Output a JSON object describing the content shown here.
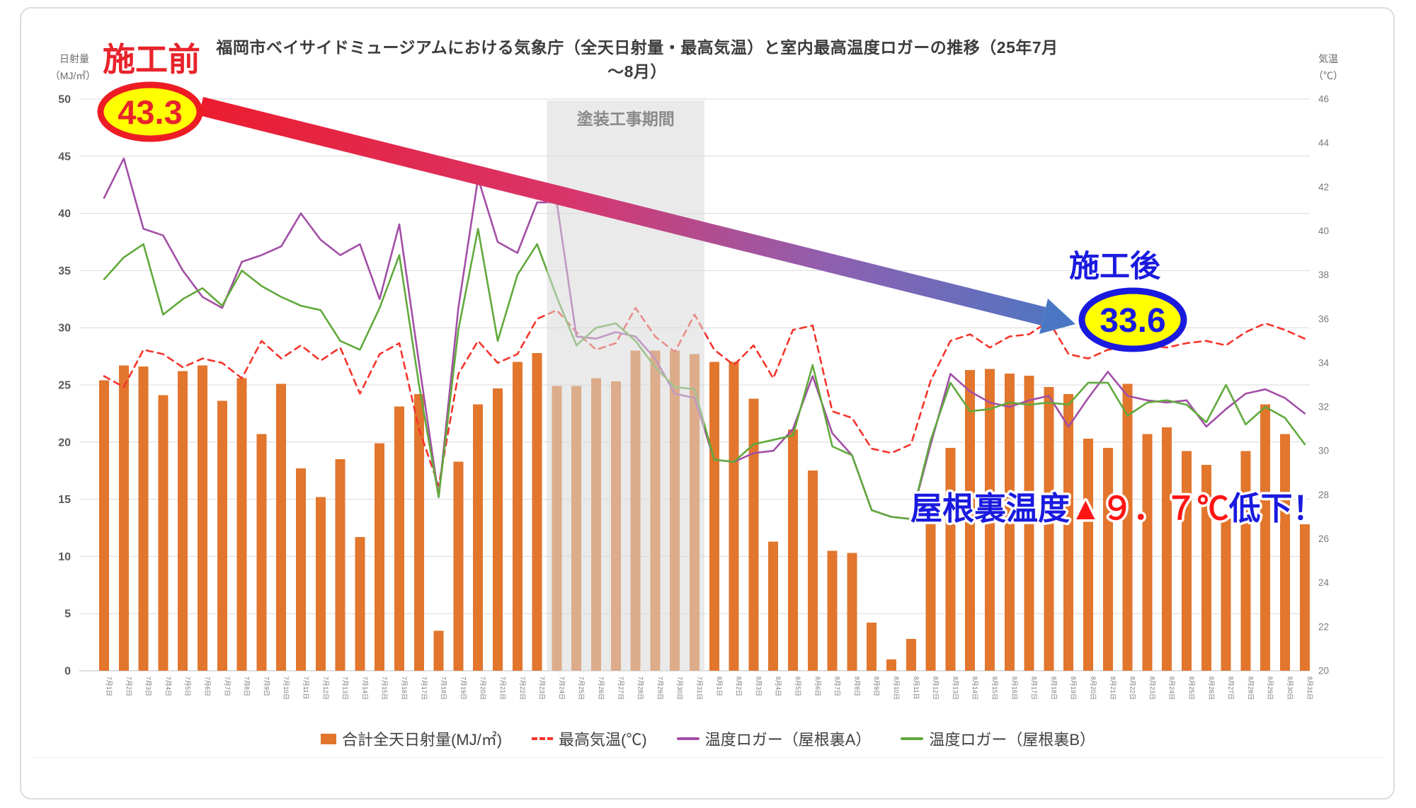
{
  "chart_data": {
    "type": "bar+line combo",
    "title": "福岡市ベイサイドミュージアムにおける気象庁（全天日射量・最高気温）と室内最高温度ロガーの推移（25年7月～8月）",
    "categories": [
      "7月1日",
      "7月2日",
      "7月3日",
      "7月4日",
      "7月5日",
      "7月6日",
      "7月7日",
      "7月8日",
      "7月9日",
      "7月10日",
      "7月11日",
      "7月12日",
      "7月13日",
      "7月14日",
      "7月15日",
      "7月16日",
      "7月17日",
      "7月18日",
      "7月19日",
      "7月20日",
      "7月21日",
      "7月22日",
      "7月23日",
      "7月24日",
      "7月25日",
      "7月26日",
      "7月27日",
      "7月28日",
      "7月29日",
      "7月30日",
      "7月31日",
      "8月1日",
      "8月2日",
      "8月3日",
      "8月4日",
      "8月5日",
      "8月6日",
      "8月7日",
      "8月8日",
      "8月9日",
      "8月10日",
      "8月11日",
      "8月12日",
      "8月13日",
      "8月14日",
      "8月15日",
      "8月16日",
      "8月17日",
      "8月18日",
      "8月19日",
      "8月20日",
      "8月21日",
      "8月22日",
      "8月23日",
      "8月24日",
      "8月25日",
      "8月26日",
      "8月27日",
      "8月28日",
      "8月29日",
      "8月30日",
      "8月31日"
    ],
    "series": [
      {
        "name": "合計全天日射量(MJ/㎡)",
        "type": "bar",
        "axis": "left",
        "color": "#e2762d",
        "values": [
          25.4,
          26.7,
          26.6,
          24.1,
          26.2,
          26.7,
          23.6,
          25.6,
          20.7,
          25.1,
          17.7,
          15.2,
          18.5,
          11.7,
          19.9,
          23.1,
          24.2,
          3.5,
          18.3,
          23.3,
          24.7,
          27.0,
          27.8,
          24.9,
          24.9,
          25.6,
          25.3,
          28.0,
          28.0,
          28.0,
          27.7,
          27.0,
          27.0,
          23.8,
          11.3,
          21.1,
          17.5,
          10.5,
          10.3,
          4.2,
          1.0,
          2.8,
          13.6,
          19.5,
          26.3,
          26.4,
          26.0,
          25.8,
          24.8,
          24.2,
          20.3,
          19.5,
          25.1,
          20.7,
          21.3,
          19.2,
          18.0,
          13.3,
          19.2,
          23.3,
          20.7,
          12.8
        ]
      },
      {
        "name": "最高気温(℃)",
        "type": "line",
        "style": "dashed",
        "axis": "right",
        "color": "#f5342b",
        "values": [
          33.4,
          32.9,
          34.6,
          34.4,
          33.8,
          34.2,
          34.0,
          33.3,
          35.0,
          34.2,
          34.8,
          34.1,
          34.7,
          32.6,
          34.4,
          34.9,
          31.0,
          28.4,
          33.5,
          35.0,
          34.0,
          34.4,
          36.0,
          36.4,
          35.4,
          34.6,
          34.9,
          36.5,
          35.2,
          34.5,
          36.2,
          34.6,
          33.9,
          34.8,
          33.3,
          35.5,
          35.7,
          31.8,
          31.5,
          30.1,
          29.9,
          30.3,
          33.2,
          35.0,
          35.3,
          34.7,
          35.2,
          35.3,
          35.9,
          34.4,
          34.2,
          34.6,
          34.7,
          34.8,
          34.7,
          34.9,
          35.0,
          34.8,
          35.4,
          35.8,
          35.5,
          35.1
        ]
      },
      {
        "name": "温度ロガー（屋根裏A）",
        "type": "line",
        "style": "solid",
        "axis": "right",
        "color": "#a24fa6",
        "values": [
          41.5,
          43.3,
          40.1,
          39.8,
          38.2,
          37.0,
          36.5,
          38.6,
          38.9,
          39.3,
          40.8,
          39.6,
          38.9,
          39.4,
          36.9,
          40.3,
          34.0,
          27.9,
          36.5,
          42.4,
          39.5,
          39.0,
          41.3,
          41.3,
          35.2,
          35.1,
          35.4,
          35.2,
          34.2,
          32.6,
          32.4,
          29.6,
          29.5,
          29.9,
          30.0,
          31.0,
          33.4,
          30.8,
          29.8,
          27.3,
          27.0,
          26.9,
          30.3,
          33.5,
          32.7,
          32.2,
          32.0,
          32.3,
          32.5,
          31.1,
          32.4,
          33.6,
          32.5,
          32.3,
          32.2,
          32.3,
          31.1,
          31.9,
          32.6,
          32.8,
          32.4,
          31.7
        ]
      },
      {
        "name": "温度ロガー（屋根裏B）",
        "type": "line",
        "style": "solid",
        "axis": "right",
        "color": "#61a93c",
        "values": [
          37.8,
          38.8,
          39.4,
          36.2,
          36.9,
          37.4,
          36.6,
          38.2,
          37.5,
          37.0,
          36.6,
          36.4,
          35.0,
          34.6,
          36.5,
          38.9,
          33.0,
          27.9,
          35.5,
          40.1,
          35.0,
          38.0,
          39.4,
          37.0,
          34.8,
          35.6,
          35.8,
          35.0,
          33.8,
          32.9,
          32.8,
          29.6,
          29.5,
          30.3,
          30.5,
          30.7,
          33.9,
          30.2,
          29.8,
          27.3,
          27.0,
          26.9,
          30.5,
          33.1,
          31.8,
          31.9,
          32.2,
          32.1,
          32.2,
          32.1,
          33.1,
          33.1,
          31.6,
          32.2,
          32.3,
          32.1,
          31.3,
          33.0,
          31.2,
          32.0,
          31.5,
          30.3
        ]
      }
    ],
    "left_axis": {
      "label_line1": "日射量",
      "label_line2": "（MJ/㎡）",
      "min": 0,
      "max": 50,
      "step": 5
    },
    "right_axis": {
      "label_line1": "気温",
      "label_line2": "（℃）",
      "min": 20,
      "max": 46,
      "step": 2
    },
    "band": {
      "label": "塗装工事期間",
      "start_index": 23,
      "end_index": 30
    },
    "grid": "horizontal",
    "legend_position": "bottom"
  },
  "annotations": {
    "before": {
      "label": "施工前",
      "value": "43.3"
    },
    "after": {
      "label": "施工後",
      "value": "33.6"
    },
    "drop": {
      "prefix": "屋根裏温度",
      "delta": "▲９．７℃",
      "suffix": "低下！"
    }
  },
  "legend": {
    "items": [
      {
        "label": "合計全天日射量(MJ/㎡)",
        "color": "#e2762d",
        "swatch": "bar"
      },
      {
        "label": "最高気温(℃)",
        "color": "#f5342b",
        "swatch": "dashed-line"
      },
      {
        "label": "温度ロガー（屋根裏A）",
        "color": "#a24fa6",
        "swatch": "line"
      },
      {
        "label": "温度ロガー（屋根裏B）",
        "color": "#61a93c",
        "swatch": "line"
      }
    ]
  }
}
